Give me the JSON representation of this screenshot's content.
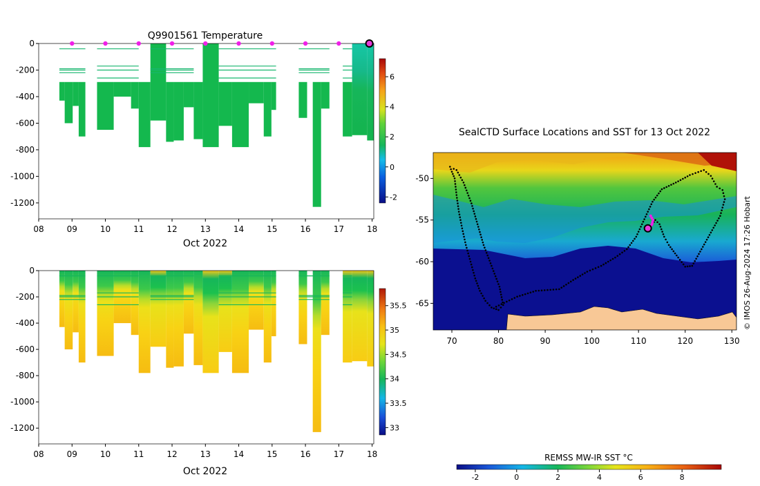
{
  "chart_data": [
    {
      "id": "temperature-section",
      "type": "heatmap",
      "title": "Q9901561  Temperature",
      "xlabel": "Oct 2022",
      "ylabel": "",
      "xlim": [
        8,
        18.05
      ],
      "ylim": [
        -1320,
        0
      ],
      "x_ticks": [
        8,
        9,
        10,
        11,
        12,
        13,
        14,
        15,
        16,
        17,
        18
      ],
      "x_tick_labels": [
        "08",
        "09",
        "10",
        "11",
        "12",
        "13",
        "14",
        "15",
        "16",
        "17",
        "18"
      ],
      "y_ticks": [
        0,
        -200,
        -400,
        -600,
        -800,
        -1000,
        -1200
      ],
      "y_tick_labels": [
        "0",
        "-200",
        "-400",
        "-600",
        "-800",
        "-1000",
        "-1200"
      ],
      "surface_markers_day": [
        9,
        10,
        11,
        12,
        13,
        14,
        15,
        16,
        17
      ],
      "current_marker_day": 18,
      "colorbar": {
        "range": [
          -2.4,
          7.2
        ],
        "ticks": [
          -2,
          0,
          2,
          4,
          6
        ],
        "tick_labels": [
          "-2",
          "0",
          "2",
          "4",
          "6"
        ]
      },
      "profiles": [
        {
          "x0": 8.62,
          "x1": 8.78,
          "depth": 430,
          "value": 2.8
        },
        {
          "x0": 8.78,
          "x1": 9.02,
          "depth": 600,
          "value": 2.8
        },
        {
          "x0": 9.02,
          "x1": 9.2,
          "depth": 470,
          "value": 2.8
        },
        {
          "x0": 9.2,
          "x1": 9.4,
          "depth": 700,
          "value": 2.8
        },
        {
          "x0": 9.75,
          "x1": 10.25,
          "depth": 650,
          "value": 2.8
        },
        {
          "x0": 10.25,
          "x1": 10.77,
          "depth": 400,
          "value": 2.8
        },
        {
          "x0": 10.77,
          "x1": 11.0,
          "depth": 490,
          "value": 2.8
        },
        {
          "x0": 11.0,
          "x1": 11.35,
          "depth": 780,
          "value": 2.8
        },
        {
          "x0": 11.35,
          "x1": 11.82,
          "depth": 580,
          "value": 2.8
        },
        {
          "x0": 11.82,
          "x1": 12.05,
          "depth": 740,
          "value": 2.8
        },
        {
          "x0": 12.05,
          "x1": 12.35,
          "depth": 730,
          "value": 2.8
        },
        {
          "x0": 12.35,
          "x1": 12.65,
          "depth": 480,
          "value": 2.8
        },
        {
          "x0": 12.65,
          "x1": 12.92,
          "depth": 720,
          "value": 2.8
        },
        {
          "x0": 12.92,
          "x1": 13.4,
          "depth": 780,
          "value": 2.8
        },
        {
          "x0": 13.4,
          "x1": 13.8,
          "depth": 620,
          "value": 2.8
        },
        {
          "x0": 13.8,
          "x1": 14.3,
          "depth": 780,
          "value": 2.8
        },
        {
          "x0": 14.3,
          "x1": 14.75,
          "depth": 450,
          "value": 2.8
        },
        {
          "x0": 14.75,
          "x1": 14.98,
          "depth": 700,
          "value": 2.8
        },
        {
          "x0": 14.98,
          "x1": 15.12,
          "depth": 500,
          "value": 2.8
        },
        {
          "x0": 15.8,
          "x1": 16.05,
          "depth": 560,
          "value": 2.8
        },
        {
          "x0": 16.22,
          "x1": 16.47,
          "depth": 1230,
          "value": 2.8
        },
        {
          "x0": 16.47,
          "x1": 16.72,
          "depth": 490,
          "value": 2.8
        },
        {
          "x0": 17.12,
          "x1": 17.4,
          "depth": 700,
          "value": 2.8
        },
        {
          "x0": 17.4,
          "x1": 17.85,
          "depth": 690,
          "value": 2.8
        },
        {
          "x0": 17.85,
          "x1": 18.05,
          "depth": 730,
          "value": 2.8
        }
      ]
    },
    {
      "id": "salinity-section",
      "type": "heatmap",
      "title": "",
      "xlabel": "Oct 2022",
      "ylabel": "",
      "xlim": [
        8,
        18.05
      ],
      "ylim": [
        -1320,
        0
      ],
      "x_ticks": [
        8,
        9,
        10,
        11,
        12,
        13,
        14,
        15,
        16,
        17,
        18
      ],
      "x_tick_labels": [
        "08",
        "09",
        "10",
        "11",
        "12",
        "13",
        "14",
        "15",
        "16",
        "17",
        "18"
      ],
      "y_ticks": [
        0,
        -200,
        -400,
        -600,
        -800,
        -1000,
        -1200
      ],
      "y_tick_labels": [
        "0",
        "-200",
        "-400",
        "-600",
        "-800",
        "-1000",
        "-1200"
      ],
      "colorbar": {
        "range": [
          32.85,
          35.85
        ],
        "ticks": [
          33,
          33.5,
          34,
          34.5,
          35,
          35.5
        ],
        "tick_labels": [
          "33",
          "33.5",
          "34",
          "34.5",
          "35",
          "35.5"
        ]
      }
    },
    {
      "id": "sst-map",
      "type": "heatmap",
      "title": "SealCTD Surface Locations and SST for 13 Oct 2022",
      "xlabel": "",
      "ylabel": "",
      "xlim": [
        66,
        131
      ],
      "ylim": [
        -68.2,
        -46.9
      ],
      "x_ticks": [
        70,
        80,
        90,
        100,
        110,
        120,
        130
      ],
      "x_tick_labels": [
        "70",
        "80",
        "90",
        "100",
        "110",
        "120",
        "130"
      ],
      "y_ticks": [
        -50,
        -55,
        -60,
        -65
      ],
      "y_tick_labels": [
        "-50",
        "-55",
        "-60",
        "-65"
      ],
      "colorbar_label": "REMSS MW-IR SST °C",
      "colorbar": {
        "range": [
          -2.9,
          9.9
        ],
        "ticks": [
          -2,
          0,
          2,
          4,
          6,
          8
        ],
        "tick_labels": [
          "-2",
          "0",
          "2",
          "4",
          "6",
          "8"
        ]
      },
      "track_west": [
        [
          69.6,
          -48.6
        ],
        [
          70,
          -49.2
        ],
        [
          70.6,
          -50
        ],
        [
          71,
          -52
        ],
        [
          71.5,
          -54
        ],
        [
          72.2,
          -56
        ],
        [
          73,
          -58
        ],
        [
          74,
          -60
        ],
        [
          75,
          -62
        ],
        [
          76,
          -63.5
        ],
        [
          77.2,
          -64.7
        ],
        [
          78.5,
          -65.5
        ],
        [
          80,
          -65.8
        ],
        [
          81,
          -65.2
        ],
        [
          80.2,
          -63
        ],
        [
          78.5,
          -60.5
        ],
        [
          76.8,
          -58
        ],
        [
          75.5,
          -55.5
        ],
        [
          74.2,
          -53
        ],
        [
          72.5,
          -50.5
        ],
        [
          71,
          -49
        ],
        [
          69.8,
          -48.7
        ]
      ],
      "track_east": [
        [
          79.5,
          -65.4
        ],
        [
          84,
          -64.2
        ],
        [
          88,
          -63.5
        ],
        [
          93,
          -63.3
        ],
        [
          96,
          -62.2
        ],
        [
          99,
          -61.2
        ],
        [
          102,
          -60.5
        ],
        [
          105,
          -59.5
        ],
        [
          107.5,
          -58.5
        ],
        [
          109.5,
          -57
        ],
        [
          111,
          -55.2
        ],
        [
          113,
          -52.8
        ],
        [
          115,
          -51.3
        ],
        [
          118,
          -50.5
        ],
        [
          121,
          -49.6
        ],
        [
          124,
          -49
        ],
        [
          125.5,
          -49.7
        ],
        [
          126.8,
          -51
        ],
        [
          128,
          -51.4
        ],
        [
          128.5,
          -52.5
        ],
        [
          127.5,
          -54.5
        ],
        [
          125.5,
          -56.5
        ],
        [
          123.5,
          -58.5
        ],
        [
          121.5,
          -60.5
        ],
        [
          120,
          -60.6
        ],
        [
          118.5,
          -59.5
        ],
        [
          116.5,
          -58
        ],
        [
          115.5,
          -57
        ],
        [
          114.5,
          -55.5
        ],
        [
          113.6,
          -55
        ],
        [
          113,
          -55.5
        ],
        [
          112.2,
          -56
        ]
      ],
      "highlight_track": [
        [
          112.6,
          -54.5
        ],
        [
          113.1,
          -55
        ],
        [
          112.9,
          -55.5
        ],
        [
          112.5,
          -55.8
        ]
      ],
      "current_position": [
        112,
        -56
      ]
    }
  ],
  "watermark": "© IMOS 26-Aug-2024 17:26 Hobart"
}
